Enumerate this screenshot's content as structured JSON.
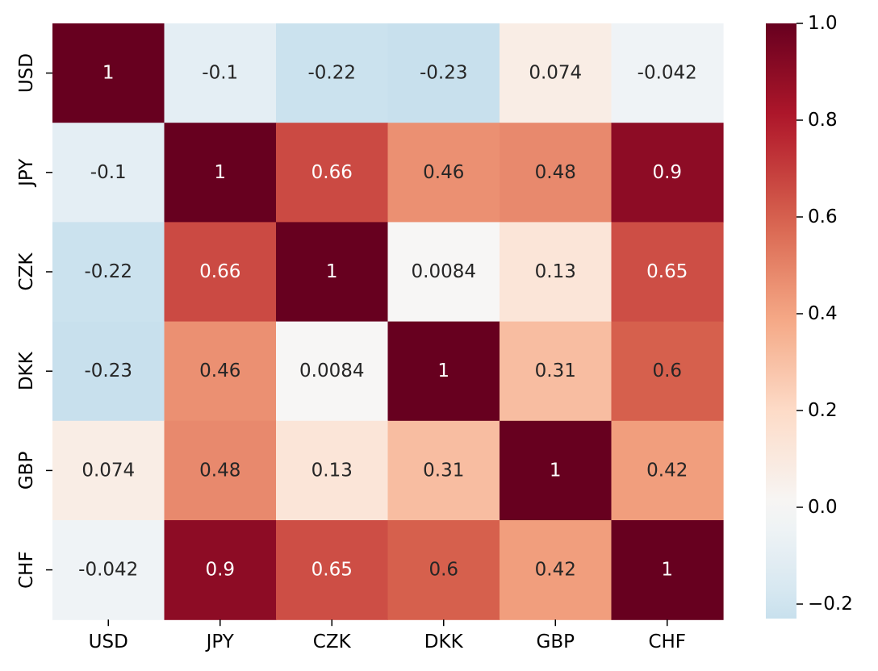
{
  "chart_data": {
    "type": "heatmap",
    "title": "",
    "xlabel": "",
    "ylabel": "",
    "x_categories": [
      "USD",
      "JPY",
      "CZK",
      "DKK",
      "GBP",
      "CHF"
    ],
    "y_categories": [
      "USD",
      "JPY",
      "CZK",
      "DKK",
      "GBP",
      "CHF"
    ],
    "values": [
      [
        1,
        -0.1,
        -0.22,
        -0.23,
        0.074,
        -0.042
      ],
      [
        -0.1,
        1,
        0.66,
        0.46,
        0.48,
        0.9
      ],
      [
        -0.22,
        0.66,
        1,
        0.0084,
        0.13,
        0.65
      ],
      [
        -0.23,
        0.46,
        0.0084,
        1,
        0.31,
        0.6
      ],
      [
        0.074,
        0.48,
        0.13,
        0.31,
        1,
        0.42
      ],
      [
        -0.042,
        0.9,
        0.65,
        0.6,
        0.42,
        1
      ]
    ],
    "annotations": [
      [
        "1",
        "-0.1",
        "-0.22",
        "-0.23",
        "0.074",
        "-0.042"
      ],
      [
        "-0.1",
        "1",
        "0.66",
        "0.46",
        "0.48",
        "0.9"
      ],
      [
        "-0.22",
        "0.66",
        "1",
        "0.0084",
        "0.13",
        "0.65"
      ],
      [
        "-0.23",
        "0.46",
        "0.0084",
        "1",
        "0.31",
        "0.6"
      ],
      [
        "0.074",
        "0.48",
        "0.13",
        "0.31",
        "1",
        "0.42"
      ],
      [
        "-0.042",
        "0.9",
        "0.65",
        "0.6",
        "0.42",
        "1"
      ]
    ],
    "colormap": "RdBu_r",
    "vmin": -0.23,
    "vmax": 1.0,
    "center": 0,
    "colorbar": {
      "ticks": [
        1.0,
        0.8,
        0.6,
        0.4,
        0.2,
        0.0,
        -0.2
      ],
      "tick_labels": [
        "1.0",
        "0.8",
        "0.6",
        "0.4",
        "0.2",
        "0.0",
        "−0.2"
      ],
      "placement": "right"
    },
    "grid": false
  }
}
